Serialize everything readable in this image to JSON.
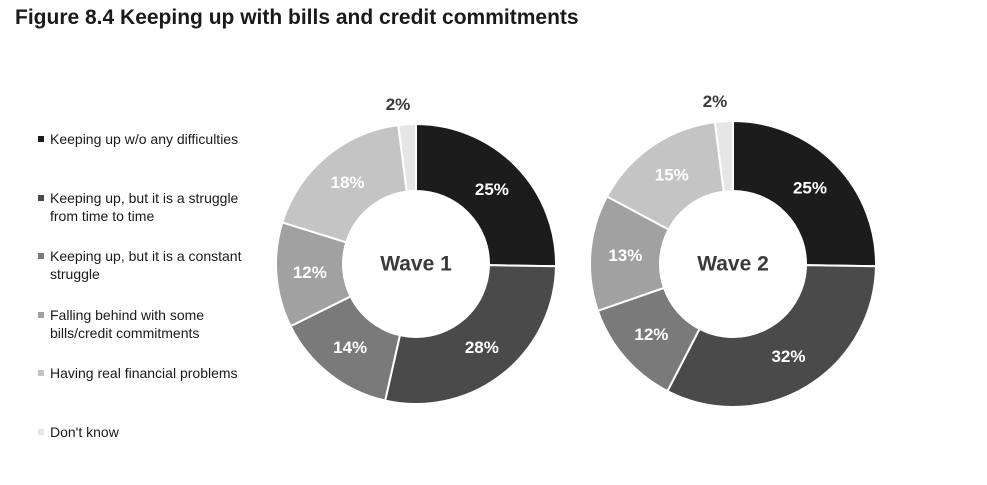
{
  "title": "Figure 8.4 Keeping up with bills and credit commitments",
  "chart_data": {
    "type": "pie",
    "categories": [
      "Keeping up w/o any difficulties",
      "Keeping up, but it is a struggle from time to time",
      "Keeping up, but it is a constant struggle",
      "Falling behind with some bills/credit commitments",
      "Having real financial problems",
      "Don't know"
    ],
    "colors": [
      "#1c1c1c",
      "#4a4a4a",
      "#7a7a7a",
      "#a1a1a1",
      "#c4c4c4",
      "#e6e6e6"
    ],
    "series": [
      {
        "name": "Wave 1",
        "values": [
          25,
          28,
          14,
          12,
          18,
          2
        ],
        "labels": [
          "25%",
          "28%",
          "14%",
          "12%",
          "18%",
          "2%"
        ]
      },
      {
        "name": "Wave 2",
        "values": [
          25,
          32,
          12,
          13,
          15,
          2
        ],
        "labels": [
          "25%",
          "32%",
          "12%",
          "13%",
          "15%",
          "2%"
        ]
      }
    ],
    "legend_position": "left"
  },
  "legend": {
    "items": [
      {
        "lines": [
          "Keeping up w/o any difficulties"
        ]
      },
      {
        "lines": [
          "Keeping up, but it is a struggle",
          "from time to time"
        ]
      },
      {
        "lines": [
          "Keeping up, but it is a constant",
          "struggle"
        ]
      },
      {
        "lines": [
          "Falling behind with some",
          "bills/credit commitments"
        ]
      },
      {
        "lines": [
          "Having real financial problems"
        ]
      },
      {
        "lines": [
          "Don't know"
        ]
      }
    ]
  }
}
